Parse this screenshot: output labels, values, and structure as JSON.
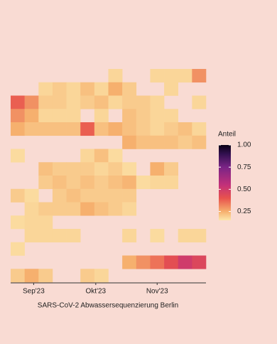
{
  "chart_data": {
    "type": "heatmap",
    "x_label": "SARS-CoV-2 Abwassersequenzierung Berlin",
    "legend_title": "Anteil",
    "x": [
      0,
      1,
      2,
      3,
      4,
      5,
      6,
      7,
      8,
      9,
      10,
      11,
      12,
      13
    ],
    "xlim": [
      -0.5,
      13.5
    ],
    "xticks": [
      {
        "value": 1.15,
        "label": "Sep'23"
      },
      {
        "value": 5.6,
        "label": "Okt'23"
      },
      {
        "value": 10,
        "label": "Nov'23"
      }
    ],
    "clim": [
      0.15,
      1
    ],
    "cticks": [
      0.25,
      {
        "value": 0.5,
        "label": "0.50"
      },
      0.75,
      {
        "value": 1,
        "label": "1.00"
      }
    ],
    "colorscale": [
      [
        0.15,
        "#fce6ab"
      ],
      [
        0.25,
        "#f6b06e"
      ],
      [
        0.4,
        "#e8534d"
      ],
      [
        0.55,
        "#c2307a"
      ],
      [
        0.75,
        "#7a2486"
      ],
      [
        0.9,
        "#32104f"
      ],
      [
        1,
        "#0a0014"
      ]
    ],
    "rows": [
      [
        null,
        null,
        null,
        null,
        null,
        null,
        null,
        0.18,
        null,
        null,
        0.18,
        0.18,
        0.18,
        0.3
      ],
      [
        null,
        null,
        0.18,
        0.2,
        0.18,
        0.22,
        0.18,
        0.25,
        0.2,
        null,
        null,
        0.18,
        null,
        null
      ],
      [
        0.38,
        0.3,
        0.2,
        0.2,
        0.18,
        0.2,
        0.22,
        0.18,
        0.2,
        0.2,
        0.18,
        null,
        null,
        0.18
      ],
      [
        0.3,
        0.25,
        0.18,
        0.18,
        0.18,
        null,
        0.18,
        null,
        0.22,
        0.2,
        0.18,
        0.18,
        null,
        null
      ],
      [
        0.25,
        0.22,
        0.22,
        0.22,
        0.22,
        0.38,
        0.22,
        0.25,
        0.22,
        0.2,
        0.18,
        0.2,
        0.22,
        0.18
      ],
      [
        null,
        null,
        null,
        null,
        null,
        null,
        null,
        null,
        0.25,
        0.22,
        0.22,
        0.22,
        0.2,
        0.22
      ],
      [
        0.17,
        null,
        null,
        null,
        null,
        0.18,
        0.22,
        0.17,
        null,
        null,
        null,
        null,
        null,
        null
      ],
      [
        null,
        null,
        0.22,
        0.2,
        0.2,
        0.2,
        0.18,
        0.2,
        0.17,
        null,
        0.25,
        0.2,
        null,
        null
      ],
      [
        null,
        null,
        0.2,
        0.22,
        0.2,
        0.22,
        0.2,
        0.22,
        0.24,
        0.17,
        0.18,
        0.18,
        null,
        null
      ],
      [
        0.2,
        0.17,
        null,
        0.2,
        0.22,
        0.2,
        0.2,
        0.2,
        0.2,
        null,
        null,
        null,
        null,
        null
      ],
      [
        null,
        0.18,
        0.2,
        0.2,
        0.2,
        0.25,
        0.22,
        0.2,
        0.18,
        null,
        null,
        null,
        null,
        null
      ],
      [
        0.17,
        0.18,
        0.18,
        null,
        null,
        null,
        null,
        null,
        null,
        null,
        null,
        null,
        null,
        null
      ],
      [
        null,
        0.18,
        0.18,
        0.18,
        0.18,
        null,
        null,
        null,
        0.18,
        null,
        0.17,
        null,
        0.18,
        0.18
      ],
      [
        0.17,
        null,
        null,
        null,
        null,
        null,
        null,
        null,
        null,
        null,
        null,
        null,
        null,
        null
      ],
      [
        null,
        null,
        null,
        null,
        null,
        null,
        null,
        null,
        0.25,
        0.3,
        0.35,
        0.42,
        0.5,
        0.45
      ],
      [
        0.2,
        0.25,
        0.2,
        null,
        null,
        0.2,
        0.18,
        null,
        null,
        null,
        null,
        null,
        null,
        null
      ]
    ]
  }
}
